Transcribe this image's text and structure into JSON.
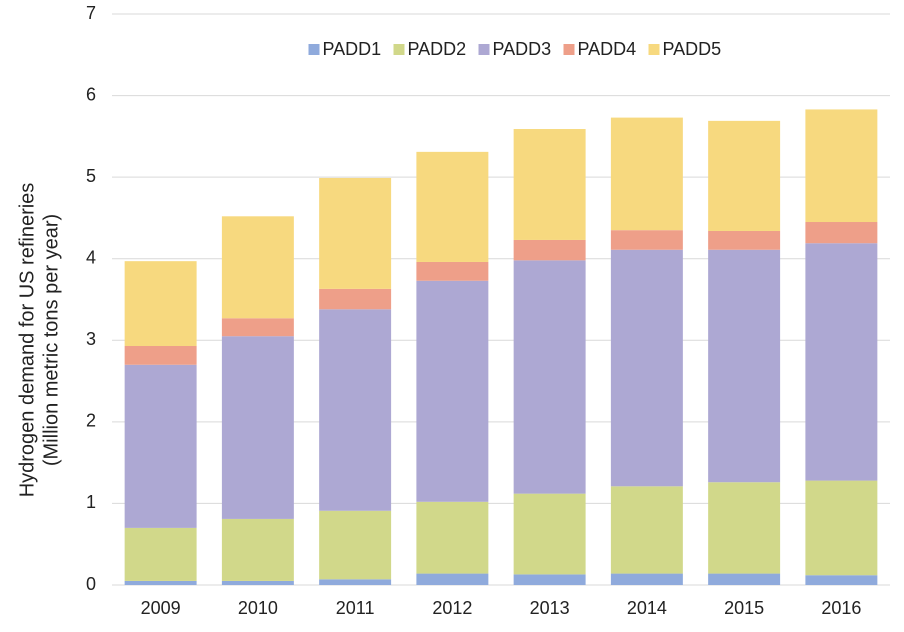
{
  "chart_data": {
    "type": "stacked_bar",
    "ylabel": [
      "Hydrogen demand for US refineries",
      "(Million metric tons per year)"
    ],
    "categories": [
      "2009",
      "2010",
      "2011",
      "2012",
      "2013",
      "2014",
      "2015",
      "2016"
    ],
    "series": [
      {
        "name": "PADD1",
        "color": "#8faadc",
        "values": [
          0.05,
          0.05,
          0.07,
          0.14,
          0.13,
          0.14,
          0.14,
          0.12
        ]
      },
      {
        "name": "PADD2",
        "color": "#d1d88a",
        "values": [
          0.65,
          0.76,
          0.84,
          0.88,
          0.99,
          1.07,
          1.12,
          1.16
        ]
      },
      {
        "name": "PADD3",
        "color": "#ada8d3",
        "values": [
          2.0,
          2.24,
          2.47,
          2.71,
          2.86,
          2.9,
          2.85,
          2.91
        ]
      },
      {
        "name": "PADD4",
        "color": "#ee9f89",
        "values": [
          0.23,
          0.22,
          0.25,
          0.23,
          0.25,
          0.24,
          0.23,
          0.26
        ]
      },
      {
        "name": "PADD5",
        "color": "#f7d97f",
        "values": [
          1.04,
          1.25,
          1.36,
          1.35,
          1.36,
          1.38,
          1.35,
          1.38
        ]
      }
    ],
    "ylim": [
      0,
      7
    ],
    "yticks": [
      0,
      1,
      2,
      3,
      4,
      5,
      6,
      7
    ],
    "grid": true,
    "legend": "top"
  }
}
